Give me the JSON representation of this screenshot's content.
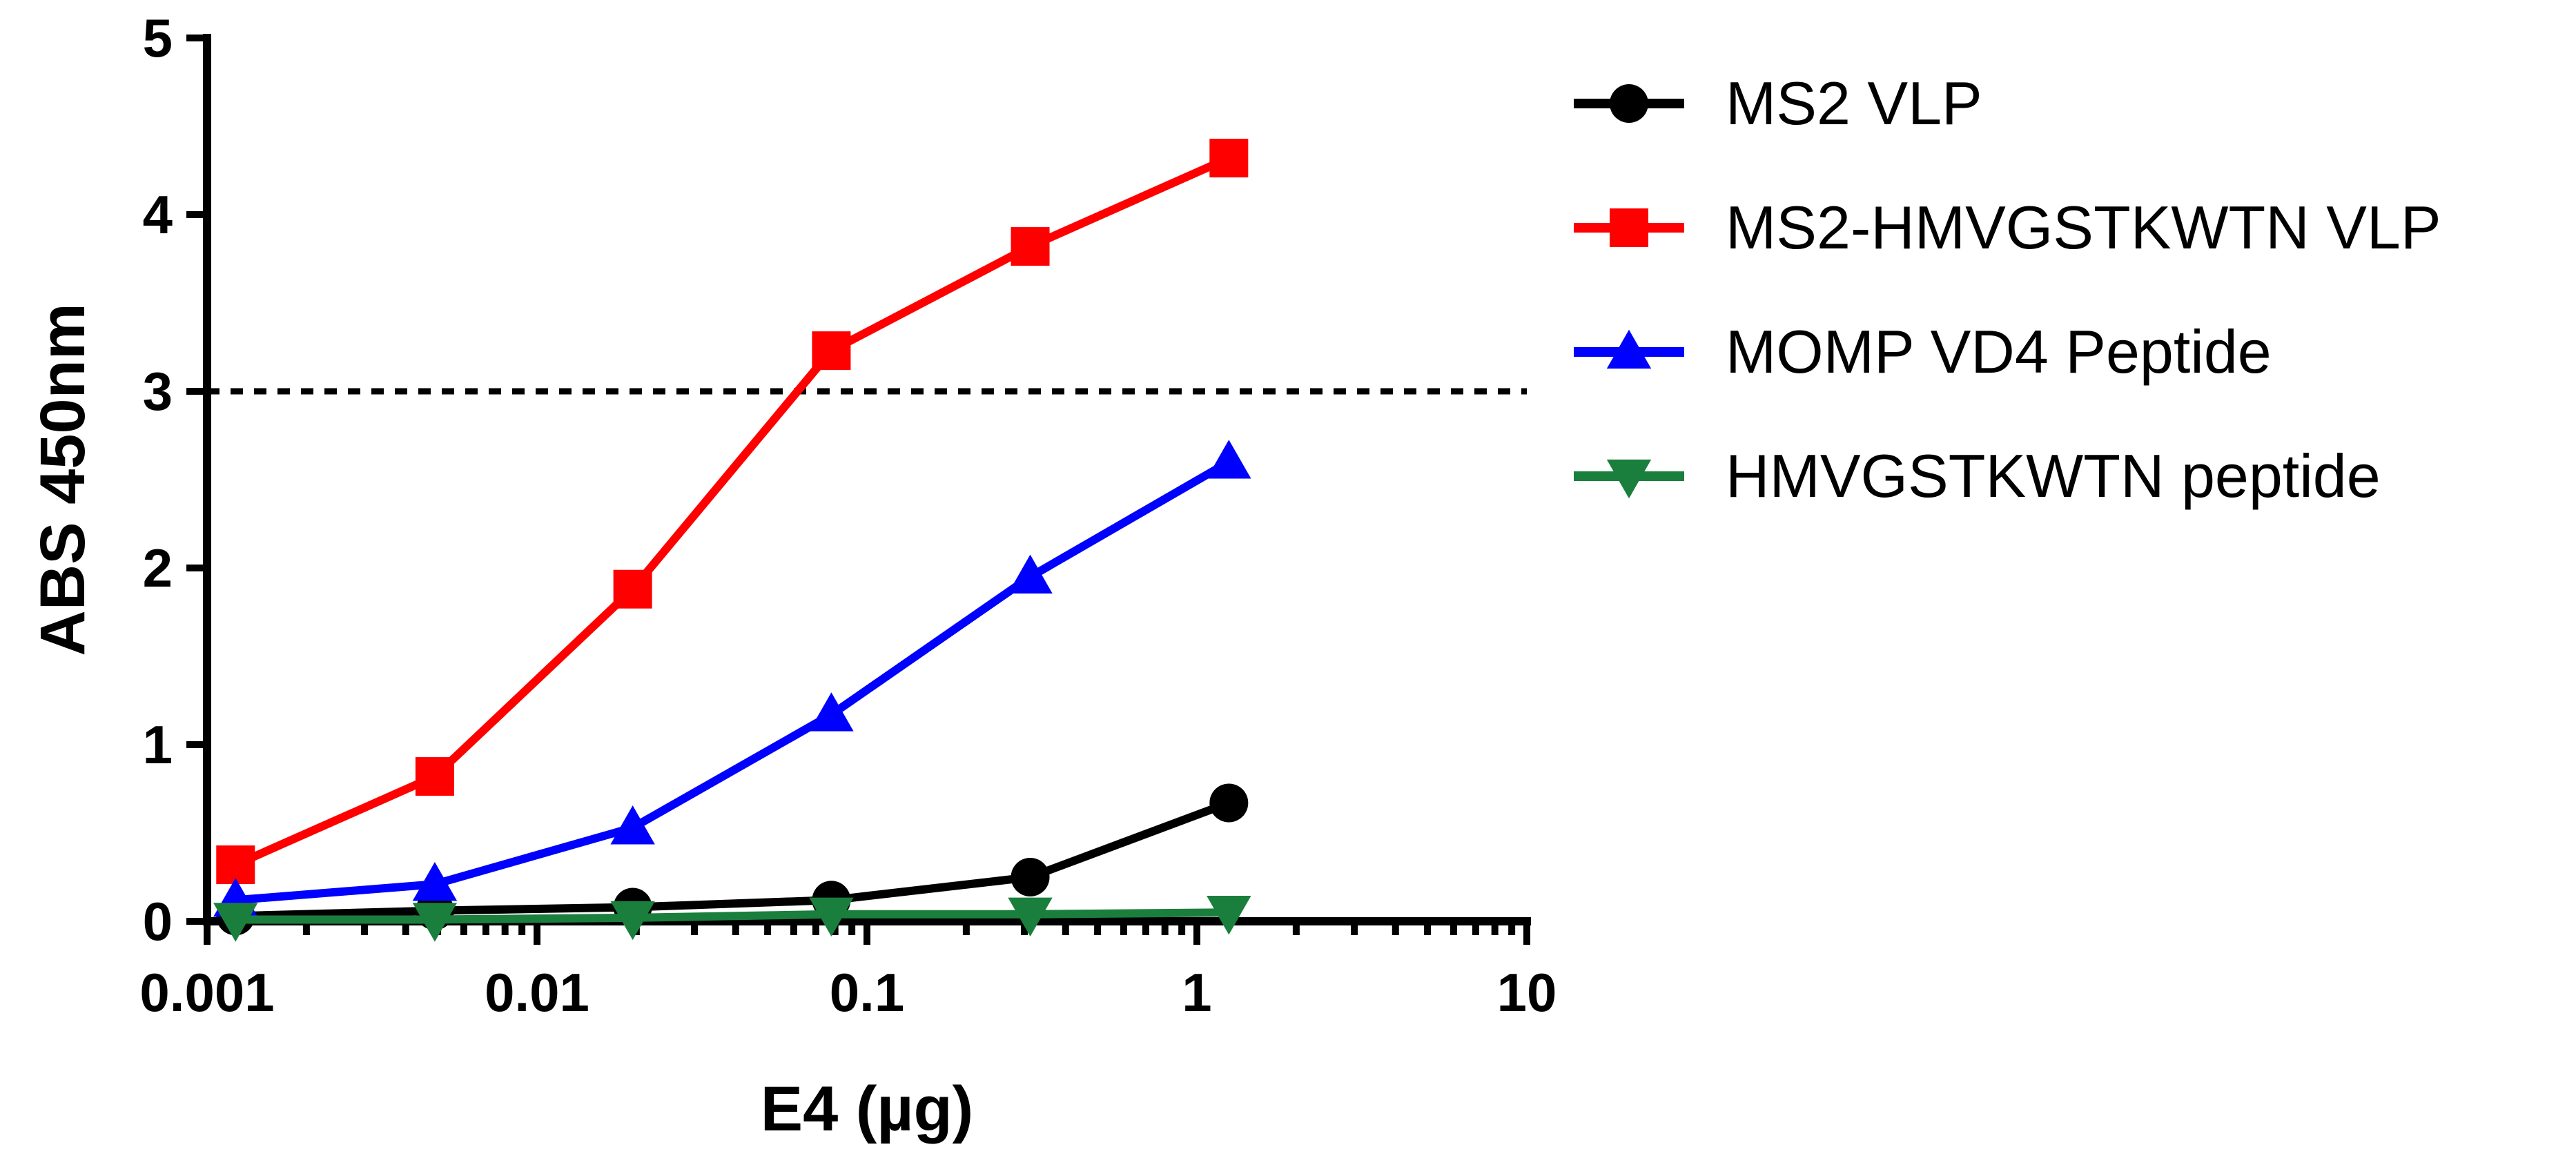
{
  "chart_data": {
    "type": "line",
    "title": "",
    "xlabel": "E4 (µg)",
    "ylabel": "ABS 450nm",
    "xscale": "log",
    "xlim": [
      0.001,
      10
    ],
    "ylim": [
      0,
      5
    ],
    "x_ticks": [
      "0.001",
      "0.01",
      "0.1",
      "1",
      "10"
    ],
    "y_ticks": [
      "0",
      "1",
      "2",
      "3",
      "4",
      "5"
    ],
    "grid": false,
    "legend_position": "right",
    "reference_line": {
      "y": 3,
      "style": "dashed"
    },
    "x": [
      0.00122,
      0.0049,
      0.0195,
      0.078,
      0.3125,
      1.25
    ],
    "series": [
      {
        "name": "MS2 VLP",
        "color": "#000000",
        "marker": "circle",
        "values": [
          0.03,
          0.06,
          0.08,
          0.12,
          0.25,
          0.67
        ]
      },
      {
        "name": "MS2-HMVGSTKWTN VLP",
        "color": "#ff0000",
        "marker": "square",
        "values": [
          0.32,
          0.82,
          1.88,
          3.23,
          3.82,
          4.32
        ]
      },
      {
        "name": "MOMP VD4 Peptide",
        "color": "#0000ff",
        "marker": "triangle-up",
        "values": [
          0.12,
          0.21,
          0.53,
          1.17,
          1.95,
          2.6
        ]
      },
      {
        "name": "HMVGSTKWTN peptide",
        "color": "#1a7f3c",
        "marker": "triangle-down",
        "values": [
          0.01,
          0.01,
          0.02,
          0.04,
          0.04,
          0.05
        ]
      }
    ]
  }
}
